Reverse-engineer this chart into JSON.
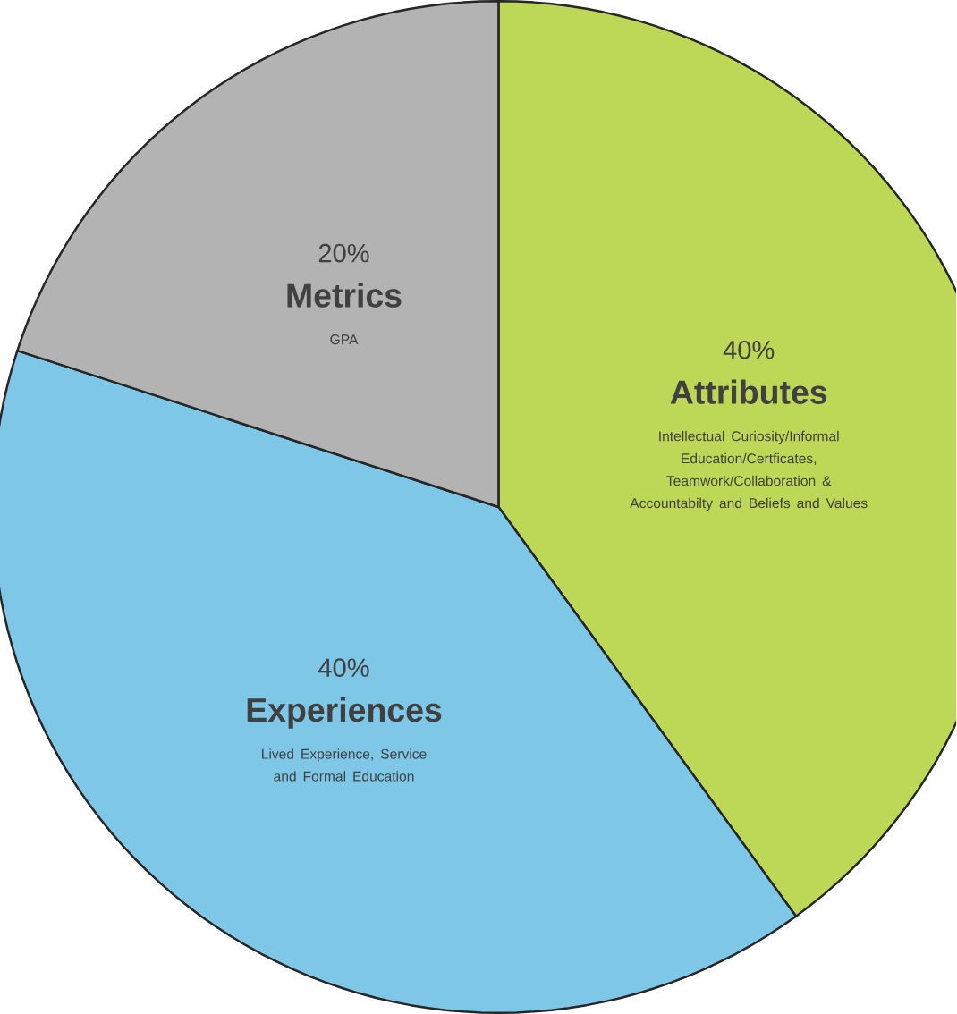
{
  "chart_data": {
    "type": "pie",
    "categories": [
      "Attributes",
      "Experiences",
      "Metrics"
    ],
    "values": [
      40,
      40,
      20
    ],
    "colors": [
      "#bdd857",
      "#7fc7e6",
      "#b3b3b3"
    ],
    "value_labels": [
      "40%",
      "40%",
      "20%"
    ],
    "annotations": [
      "Intellectual Curiosity/Informal Education/Certficates, Teamwork/Collaboration & Accountabilty and Beliefs and Values",
      "Lived Experience, Service and Formal Education",
      "GPA"
    ]
  }
}
